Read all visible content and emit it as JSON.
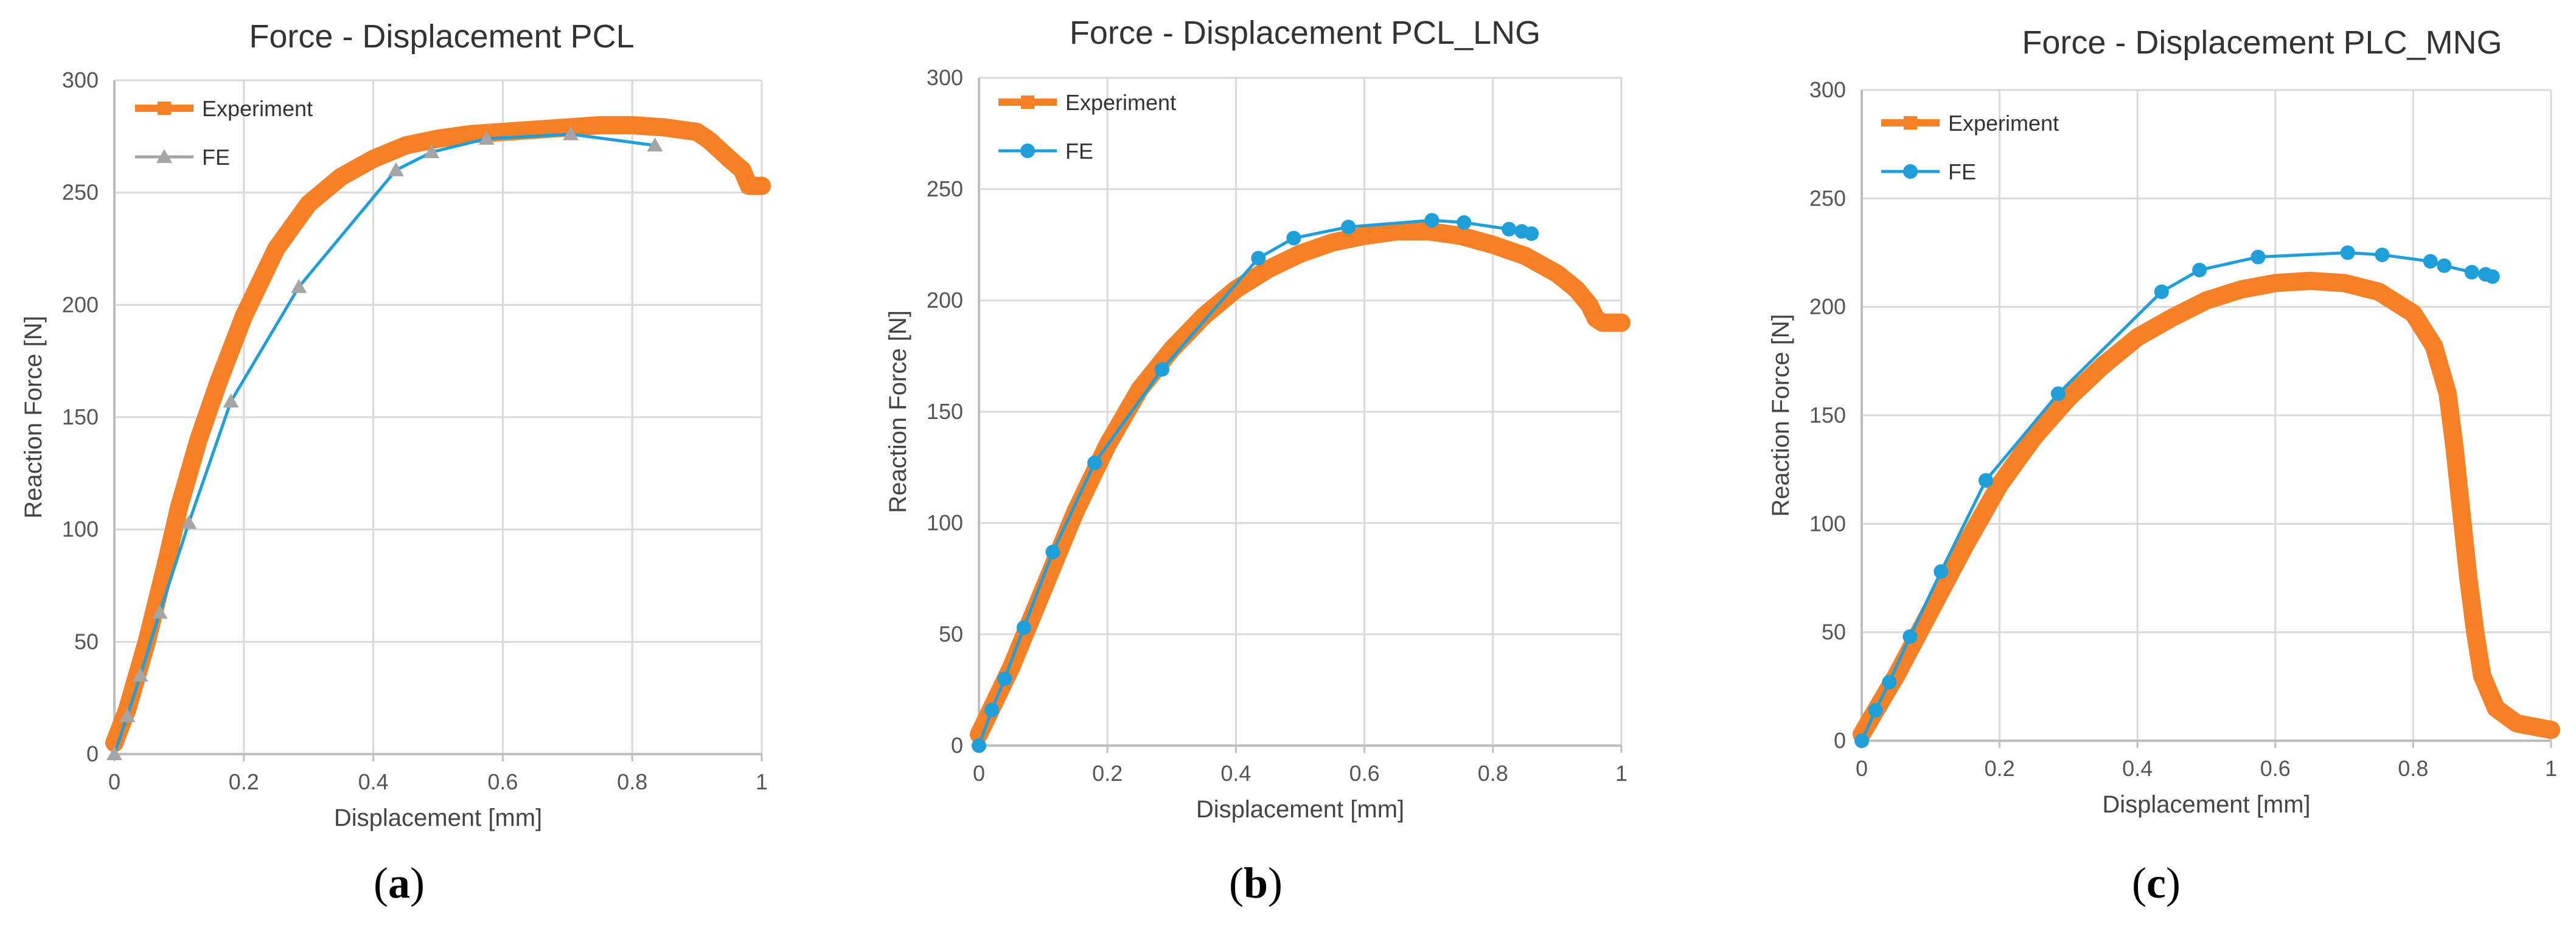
{
  "colors": {
    "experiment": "#F58025",
    "fe_gray": "#A5A5A5",
    "fe_blue": "#1F9FD9",
    "grid": "#D9D9D9",
    "axis": "#BFBFBF"
  },
  "chart_data": [
    {
      "type": "line",
      "title": "Force - Displacement PCL",
      "xlabel": "Displacement [mm]",
      "ylabel": "Reaction Force [N]",
      "xlim": [
        0,
        1
      ],
      "ylim": [
        0,
        300
      ],
      "xticks": [
        0,
        0.2,
        0.4,
        0.6,
        0.8,
        1
      ],
      "xtick_labels": [
        "0",
        "0.2",
        "0.4",
        "0.6",
        "0.8",
        "1"
      ],
      "yticks": [
        0,
        50,
        100,
        150,
        200,
        250,
        300
      ],
      "ytick_labels": [
        "0",
        "50",
        "100",
        "150",
        "200",
        "250",
        "300"
      ],
      "legend": "top-left",
      "panel_label": {
        "open": "(",
        "letter": "a",
        "close": ")"
      },
      "series": [
        {
          "name": "Experiment",
          "marker": "square",
          "color": "#F58025",
          "x": [
            0,
            0.02,
            0.05,
            0.08,
            0.1,
            0.13,
            0.16,
            0.2,
            0.25,
            0.3,
            0.35,
            0.4,
            0.45,
            0.5,
            0.55,
            0.6,
            0.65,
            0.7,
            0.75,
            0.8,
            0.85,
            0.9,
            0.92,
            0.95,
            0.97,
            0.98,
            1.0
          ],
          "y": [
            5,
            20,
            50,
            85,
            110,
            140,
            165,
            195,
            225,
            245,
            257,
            265,
            271,
            274,
            276,
            277,
            278,
            279,
            280,
            280,
            279,
            277,
            273,
            265,
            260,
            253,
            253
          ]
        },
        {
          "name": "FE",
          "marker": "triangle",
          "color": "#A5A5A5",
          "line_segment_color": "#1F9FD9",
          "x": [
            0,
            0.02,
            0.04,
            0.07,
            0.115,
            0.18,
            0.285,
            0.435,
            0.49,
            0.575,
            0.705,
            0.835
          ],
          "y": [
            0,
            17,
            35,
            63,
            103,
            157,
            208,
            260,
            268,
            274,
            276,
            271
          ]
        }
      ]
    },
    {
      "type": "line",
      "title": "Force - Displacement PCL_LNG",
      "xlabel": "Displacement [mm]",
      "ylabel": "Reaction Force [N]",
      "xlim": [
        0,
        1
      ],
      "ylim": [
        0,
        300
      ],
      "xticks": [
        0,
        0.2,
        0.4,
        0.6,
        0.8,
        1
      ],
      "xtick_labels": [
        "0",
        "0.2",
        "0.4",
        "0.6",
        "0.8",
        "1"
      ],
      "yticks": [
        0,
        50,
        100,
        150,
        200,
        250,
        300
      ],
      "ytick_labels": [
        "0",
        "50",
        "100",
        "150",
        "200",
        "250",
        "300"
      ],
      "legend": "top-left",
      "panel_label": {
        "open": "(",
        "letter": "b",
        "close": ")"
      },
      "series": [
        {
          "name": "Experiment",
          "marker": "square",
          "color": "#F58025",
          "x": [
            0,
            0.05,
            0.1,
            0.15,
            0.2,
            0.25,
            0.3,
            0.35,
            0.4,
            0.45,
            0.5,
            0.55,
            0.6,
            0.65,
            0.7,
            0.75,
            0.8,
            0.85,
            0.9,
            0.93,
            0.95,
            0.96,
            0.97,
            1.0
          ],
          "y": [
            5,
            35,
            70,
            105,
            135,
            160,
            178,
            193,
            205,
            214,
            221,
            226,
            229,
            231,
            231,
            229,
            225,
            220,
            212,
            205,
            198,
            192,
            190,
            190
          ]
        },
        {
          "name": "FE",
          "marker": "circle",
          "color": "#1F9FD9",
          "x": [
            0,
            0.02,
            0.04,
            0.07,
            0.115,
            0.18,
            0.285,
            0.435,
            0.49,
            0.575,
            0.705,
            0.755,
            0.825,
            0.845,
            0.86
          ],
          "y": [
            0,
            16,
            30,
            53,
            87,
            127,
            169,
            219,
            228,
            233,
            236,
            235,
            232,
            231,
            230
          ]
        }
      ]
    },
    {
      "type": "line",
      "title": "Force - Displacement PLC_MNG",
      "xlabel": "Displacement [mm]",
      "ylabel": "Reaction Force [N]",
      "xlim": [
        0,
        1
      ],
      "ylim": [
        0,
        300
      ],
      "xticks": [
        0,
        0.2,
        0.4,
        0.6,
        0.8,
        1
      ],
      "xtick_labels": [
        "0",
        "0.2",
        "0.4",
        "0.6",
        "0.8",
        "1"
      ],
      "yticks": [
        0,
        50,
        100,
        150,
        200,
        250,
        300
      ],
      "ytick_labels": [
        "0",
        "50",
        "100",
        "150",
        "200",
        "250",
        "300"
      ],
      "legend": "top-left",
      "panel_label": {
        "open": "(",
        "letter": "c",
        "close": ")"
      },
      "series": [
        {
          "name": "Experiment",
          "marker": "square",
          "color": "#F58025",
          "x": [
            0,
            0.05,
            0.1,
            0.15,
            0.2,
            0.25,
            0.3,
            0.35,
            0.4,
            0.45,
            0.5,
            0.55,
            0.6,
            0.65,
            0.7,
            0.75,
            0.8,
            0.83,
            0.85,
            0.86,
            0.87,
            0.88,
            0.89,
            0.9,
            0.92,
            0.95,
            1.0
          ],
          "y": [
            3,
            30,
            60,
            90,
            118,
            140,
            158,
            173,
            186,
            195,
            203,
            208,
            211,
            212,
            211,
            207,
            197,
            182,
            160,
            135,
            105,
            75,
            50,
            30,
            15,
            8,
            5
          ]
        },
        {
          "name": "FE",
          "marker": "circle",
          "color": "#1F9FD9",
          "x": [
            0,
            0.02,
            0.04,
            0.07,
            0.115,
            0.18,
            0.285,
            0.435,
            0.49,
            0.575,
            0.705,
            0.755,
            0.825,
            0.845,
            0.885,
            0.905,
            0.915
          ],
          "y": [
            0,
            14,
            27,
            48,
            78,
            120,
            160,
            207,
            217,
            223,
            225,
            224,
            221,
            219,
            216,
            215,
            214
          ]
        }
      ]
    }
  ]
}
